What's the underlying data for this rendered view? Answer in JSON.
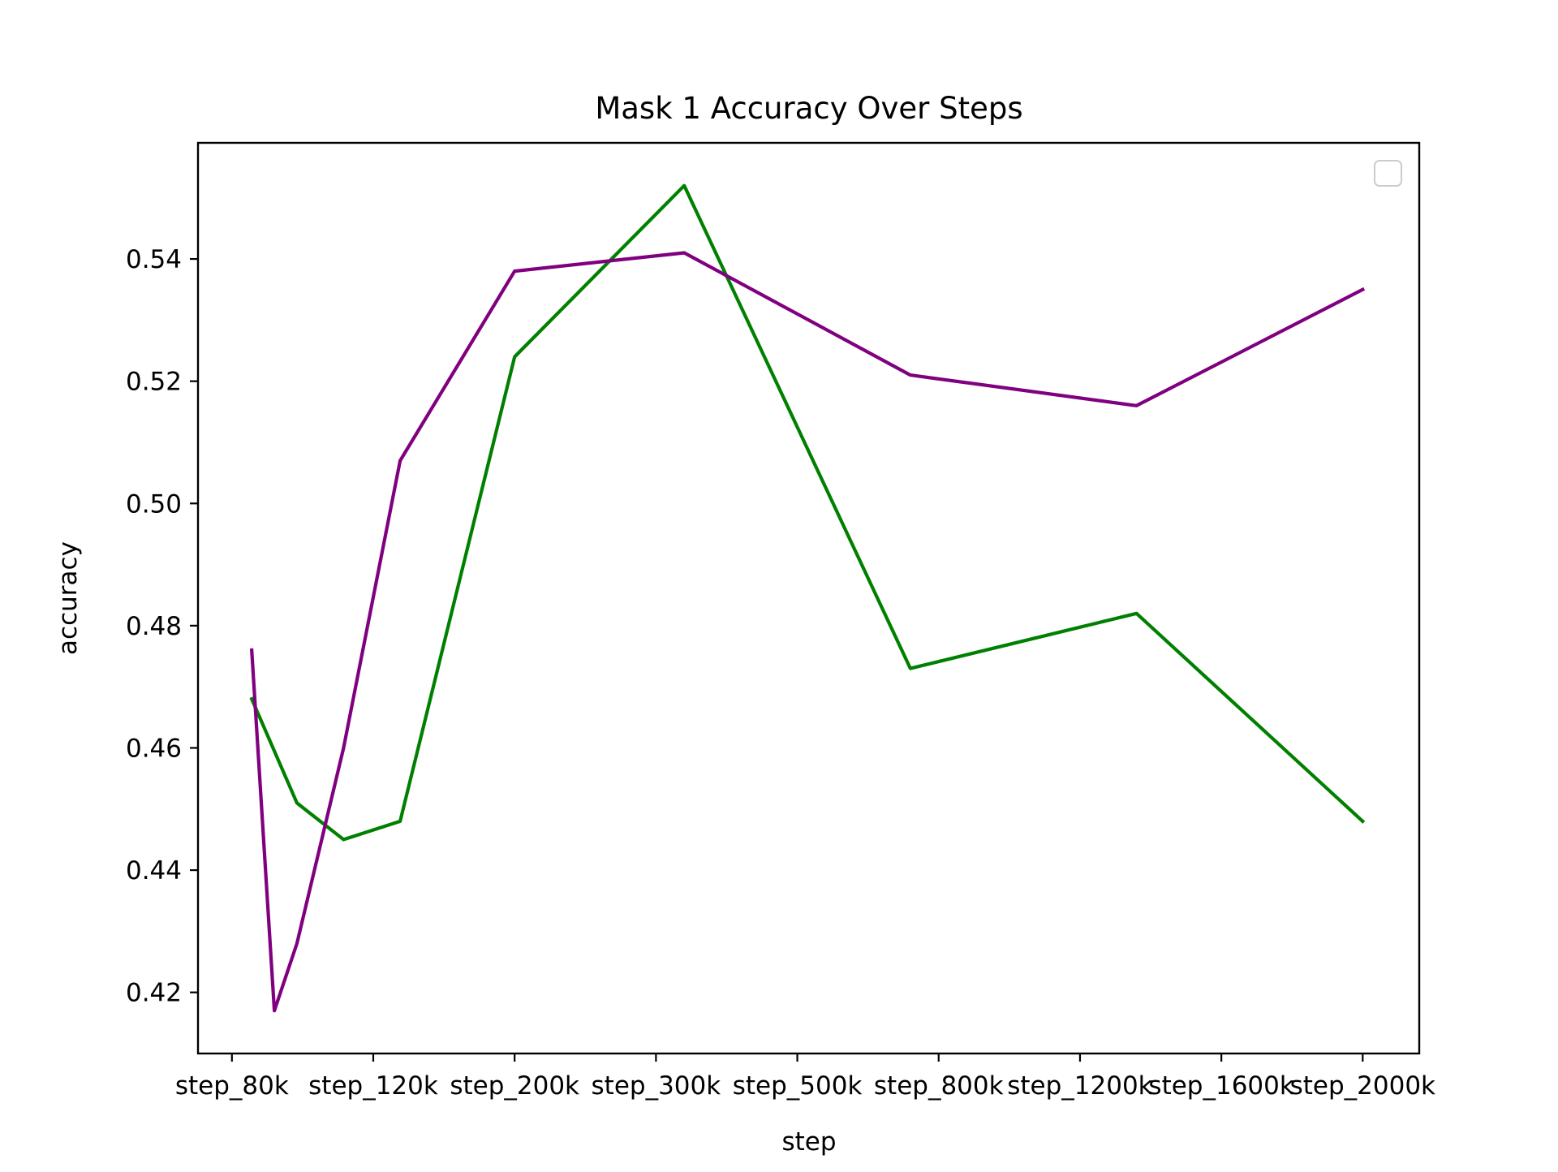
{
  "chart_data": {
    "type": "line",
    "title": "Mask 1 Accuracy Over Steps",
    "xlabel": "step",
    "ylabel": "accuracy",
    "categories": [
      "step_80k",
      "step_120k",
      "step_200k",
      "step_300k",
      "step_500k",
      "step_800k",
      "step_1200k",
      "step_1600k",
      "step_2000k"
    ],
    "x_tick_positions": [
      0,
      1,
      2,
      3,
      4,
      5,
      6,
      7,
      8
    ],
    "xlim": [
      -0.24,
      8.4
    ],
    "ylim": [
      0.41,
      0.559
    ],
    "yticks": [
      0.42,
      0.44,
      0.46,
      0.48,
      0.5,
      0.52,
      0.54
    ],
    "ytick_labels": [
      "0.42",
      "0.44",
      "0.46",
      "0.48",
      "0.50",
      "0.52",
      "0.54"
    ],
    "grid": false,
    "legend": {
      "placement": "top-right",
      "entries": []
    },
    "series": [
      {
        "color": "#008000",
        "x": [
          0.14,
          0.46,
          0.79,
          1.19,
          2.0,
          3.2,
          4.8,
          6.4,
          8.0
        ],
        "y": [
          0.468,
          0.451,
          0.445,
          0.448,
          0.524,
          0.552,
          0.473,
          0.482,
          0.448
        ]
      },
      {
        "color": "#800080",
        "x": [
          0.14,
          0.3,
          0.46,
          0.79,
          1.19,
          2.0,
          3.2,
          4.8,
          6.4,
          8.0
        ],
        "y": [
          0.476,
          0.417,
          0.428,
          0.46,
          0.507,
          0.538,
          0.541,
          0.521,
          0.516,
          0.535
        ]
      }
    ]
  }
}
